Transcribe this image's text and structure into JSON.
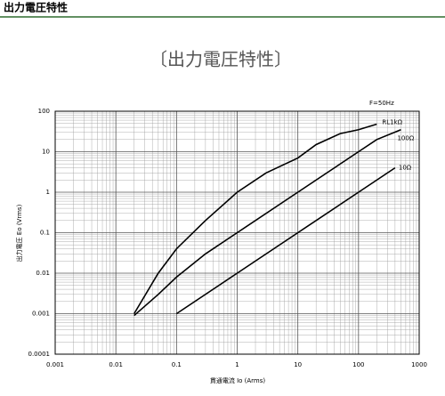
{
  "header": {
    "title": "出力電圧特性"
  },
  "chart_data": {
    "type": "line",
    "title": "〔出力電圧特性〕",
    "annotation": "F=50Hz",
    "x_label": "貫通電流 Io (Arms)",
    "y_label": "出力電圧 Eo (Vrms)",
    "xscale": "log",
    "yscale": "log",
    "grid": true,
    "minor_grid": true,
    "xlim": [
      0.001,
      1000
    ],
    "ylim": [
      0.0001,
      100
    ],
    "xticks": [
      0.001,
      0.01,
      0.1,
      1,
      10,
      100,
      1000
    ],
    "yticks": [
      0.0001,
      0.001,
      0.01,
      0.1,
      1,
      10,
      100
    ],
    "series": [
      {
        "name": "RL1kΩ",
        "color": "#000000",
        "x": [
          0.02,
          0.05,
          0.1,
          0.3,
          1,
          3,
          10,
          20,
          50,
          100,
          200
        ],
        "values": [
          0.001,
          0.01,
          0.04,
          0.2,
          1,
          3,
          7,
          15,
          28,
          35,
          48
        ]
      },
      {
        "name": "100Ω",
        "color": "#000000",
        "x": [
          0.02,
          0.05,
          0.1,
          0.3,
          1,
          10,
          100,
          200,
          500
        ],
        "values": [
          0.0009,
          0.003,
          0.008,
          0.03,
          0.1,
          1,
          10,
          20,
          35
        ]
      },
      {
        "name": "10Ω",
        "color": "#000000",
        "x": [
          0.1,
          1,
          10,
          100,
          400
        ],
        "values": [
          0.001,
          0.01,
          0.1,
          1,
          4
        ]
      }
    ]
  }
}
